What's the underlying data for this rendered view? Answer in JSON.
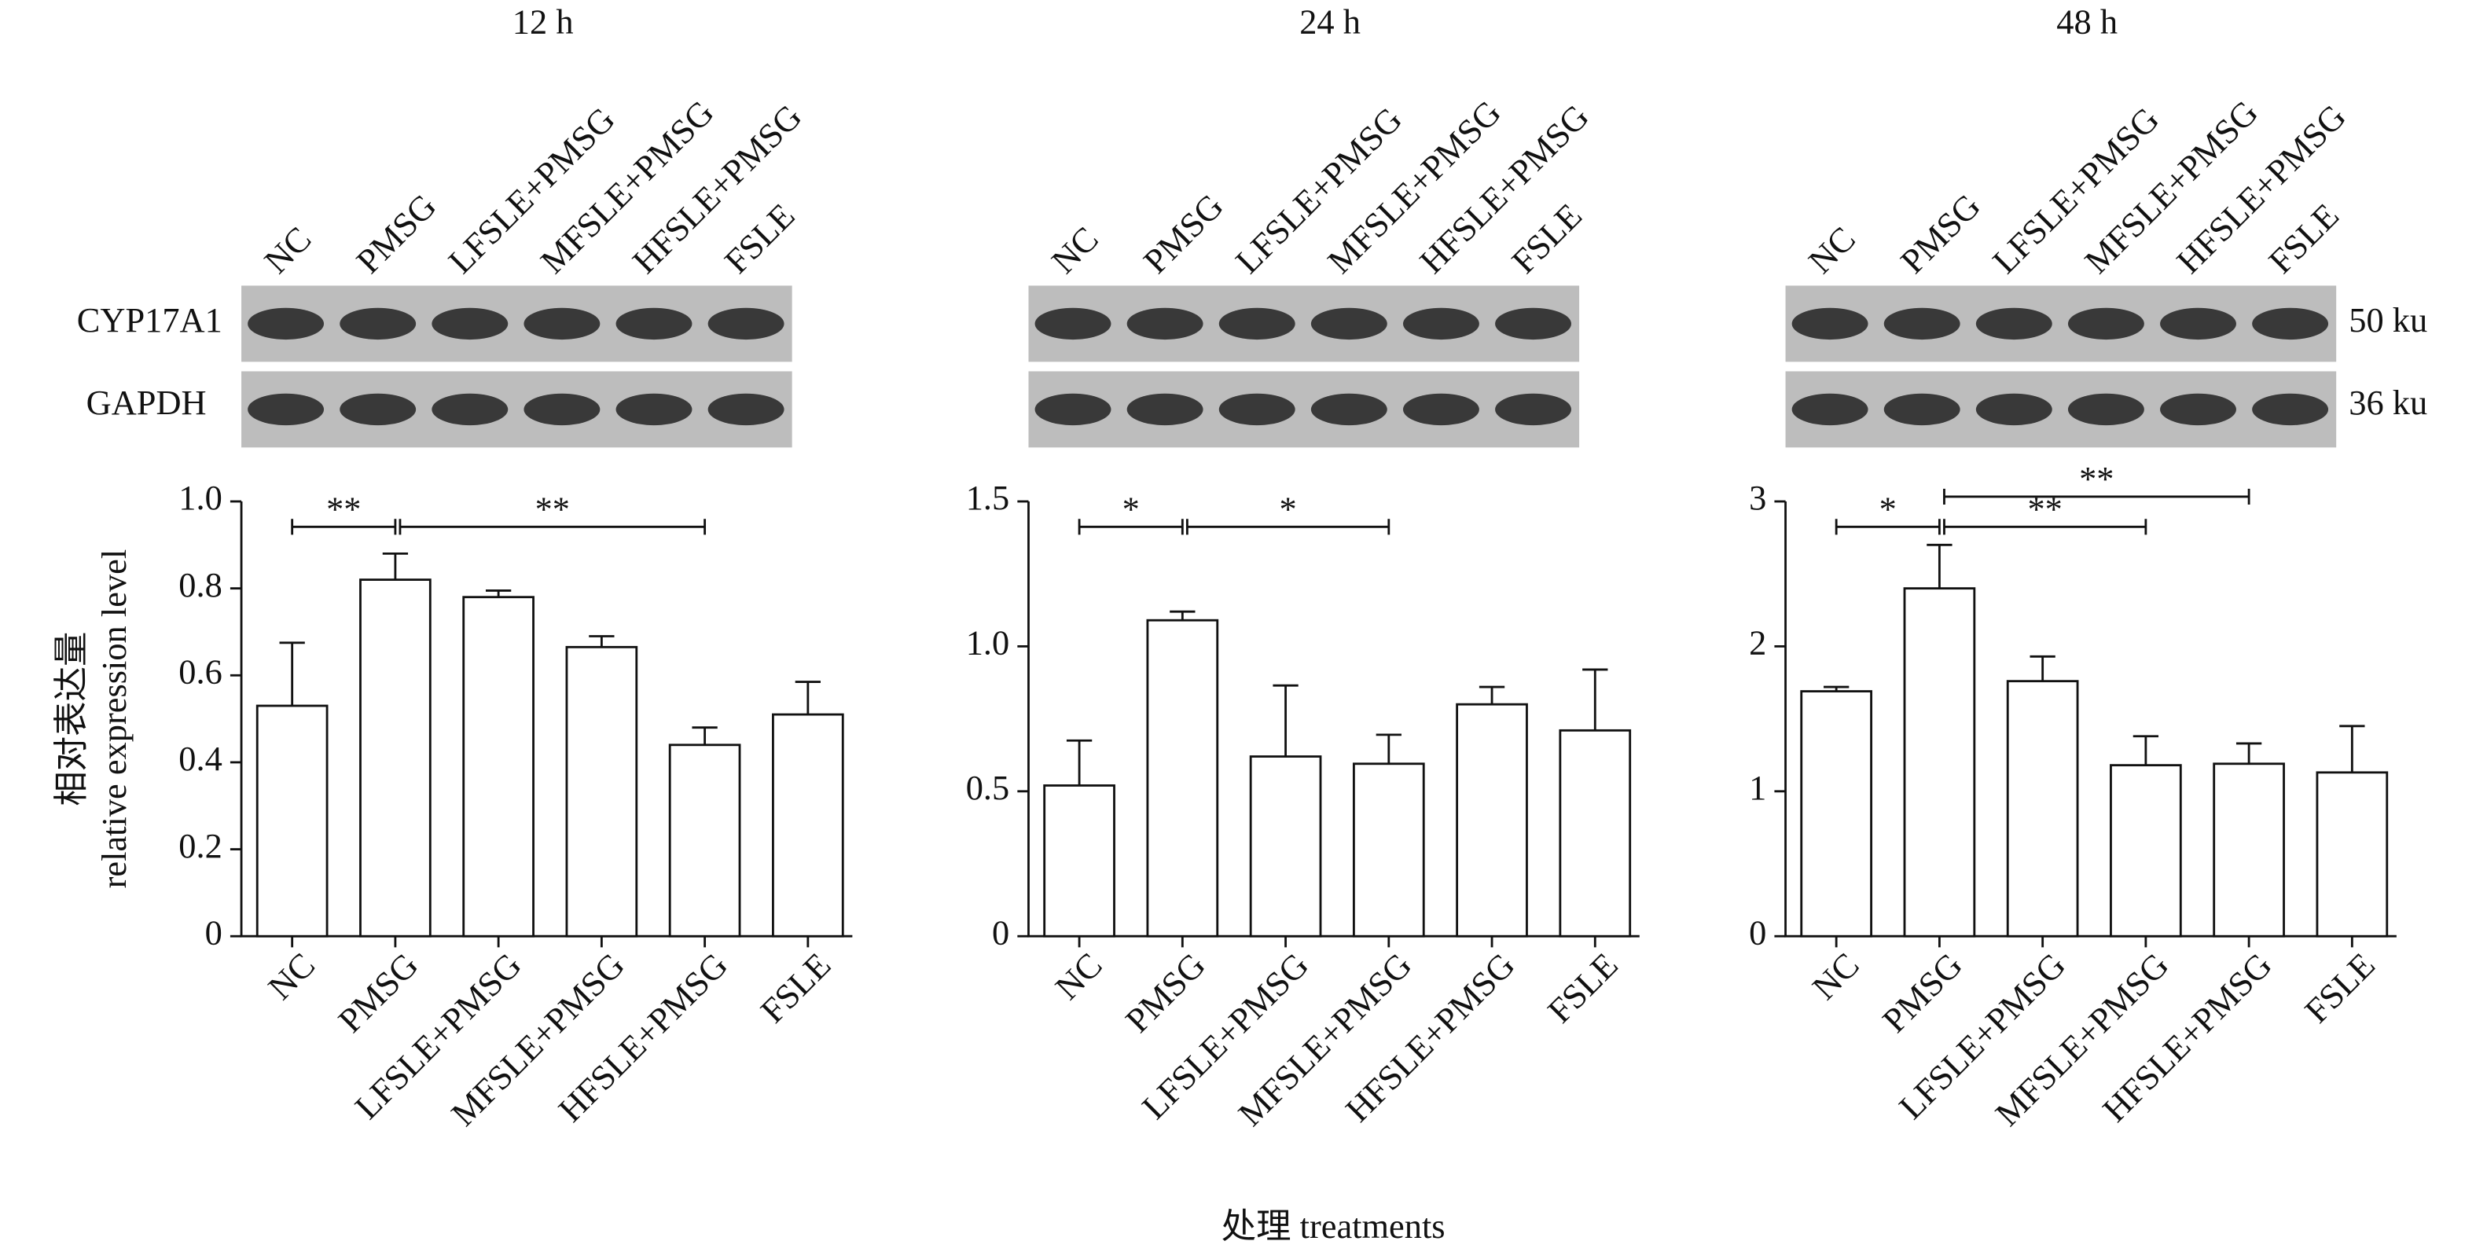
{
  "figure": {
    "y_label": [
      "相对表达量",
      "relative expression level"
    ],
    "x_label": "处理 treatments",
    "blot_rows": [
      "CYP17A1",
      "GAPDH"
    ],
    "blot_sizes": [
      "50 ku",
      "36 ku"
    ]
  },
  "chart_data": [
    {
      "type": "bar",
      "title": "12 h",
      "categories": [
        "NC",
        "PMSG",
        "LFSLE+PMSG",
        "MFSLE+PMSG",
        "HFSLE+PMSG",
        "FSLE"
      ],
      "values": [
        0.53,
        0.82,
        0.78,
        0.665,
        0.44,
        0.51
      ],
      "errors": [
        0.145,
        0.06,
        0.015,
        0.025,
        0.04,
        0.075
      ],
      "ylim": [
        0,
        1
      ],
      "yticks": [
        0,
        0.2,
        0.4,
        0.6,
        0.8,
        {
          "value": 1,
          "label": "1.0"
        }
      ],
      "annotations": [
        {
          "groups": [
            0,
            1
          ],
          "label": "**"
        },
        {
          "groups": [
            1,
            4
          ],
          "label": "**"
        }
      ]
    },
    {
      "type": "bar",
      "title": "24 h",
      "categories": [
        "NC",
        "PMSG",
        "LFSLE+PMSG",
        "MFSLE+PMSG",
        "HFSLE+PMSG",
        "FSLE"
      ],
      "values": [
        0.52,
        1.09,
        0.62,
        0.595,
        0.8,
        0.71
      ],
      "errors": [
        0.155,
        0.03,
        0.245,
        0.1,
        0.06,
        0.21
      ],
      "ylim": [
        0,
        1.5
      ],
      "yticks": [
        0,
        0.5,
        {
          "value": 1,
          "label": "1.0"
        },
        1.5
      ],
      "annotations": [
        {
          "groups": [
            0,
            1
          ],
          "label": "*"
        },
        {
          "groups": [
            1,
            3
          ],
          "label": "*"
        }
      ]
    },
    {
      "type": "bar",
      "title": "48 h",
      "categories": [
        "NC",
        "PMSG",
        "LFSLE+PMSG",
        "MFSLE+PMSG",
        "HFSLE+PMSG",
        "FSLE"
      ],
      "values": [
        1.69,
        2.4,
        1.76,
        1.18,
        1.19,
        1.13
      ],
      "errors": [
        0.03,
        0.3,
        0.17,
        0.2,
        0.14,
        0.32
      ],
      "ylim": [
        0,
        3
      ],
      "yticks": [
        0,
        1,
        2,
        3
      ],
      "annotations": [
        {
          "groups": [
            0,
            1
          ],
          "label": "*"
        },
        {
          "groups": [
            1,
            3
          ],
          "label": "**"
        },
        {
          "groups": [
            1,
            4
          ],
          "label": "**"
        }
      ]
    }
  ]
}
